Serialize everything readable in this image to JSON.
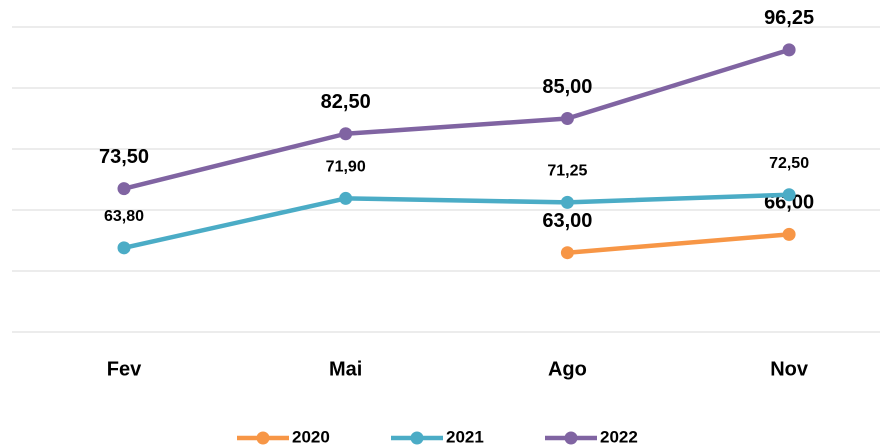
{
  "chart_data": {
    "type": "line",
    "categories": [
      "Fev",
      "Mai",
      "Ago",
      "Nov"
    ],
    "series": [
      {
        "name": "2020",
        "color": "#f79646",
        "values": [
          null,
          null,
          63.0,
          66.0
        ],
        "value_labels": [
          null,
          null,
          "63,00",
          "66,00"
        ]
      },
      {
        "name": "2021",
        "color": "#4bacc6",
        "values": [
          63.8,
          71.9,
          71.25,
          72.5
        ],
        "value_labels": [
          "63,80",
          "71,90",
          "71,25",
          "72,50"
        ]
      },
      {
        "name": "2022",
        "color": "#8064a2",
        "values": [
          73.5,
          82.5,
          85.0,
          96.25
        ],
        "value_labels": [
          "73,50",
          "82,50",
          "85,00",
          "96,25"
        ]
      }
    ],
    "ylim": [
      50,
      100
    ],
    "yticks": [
      50,
      60,
      70,
      80,
      90,
      100
    ],
    "grid": true,
    "legend": "bottom"
  }
}
